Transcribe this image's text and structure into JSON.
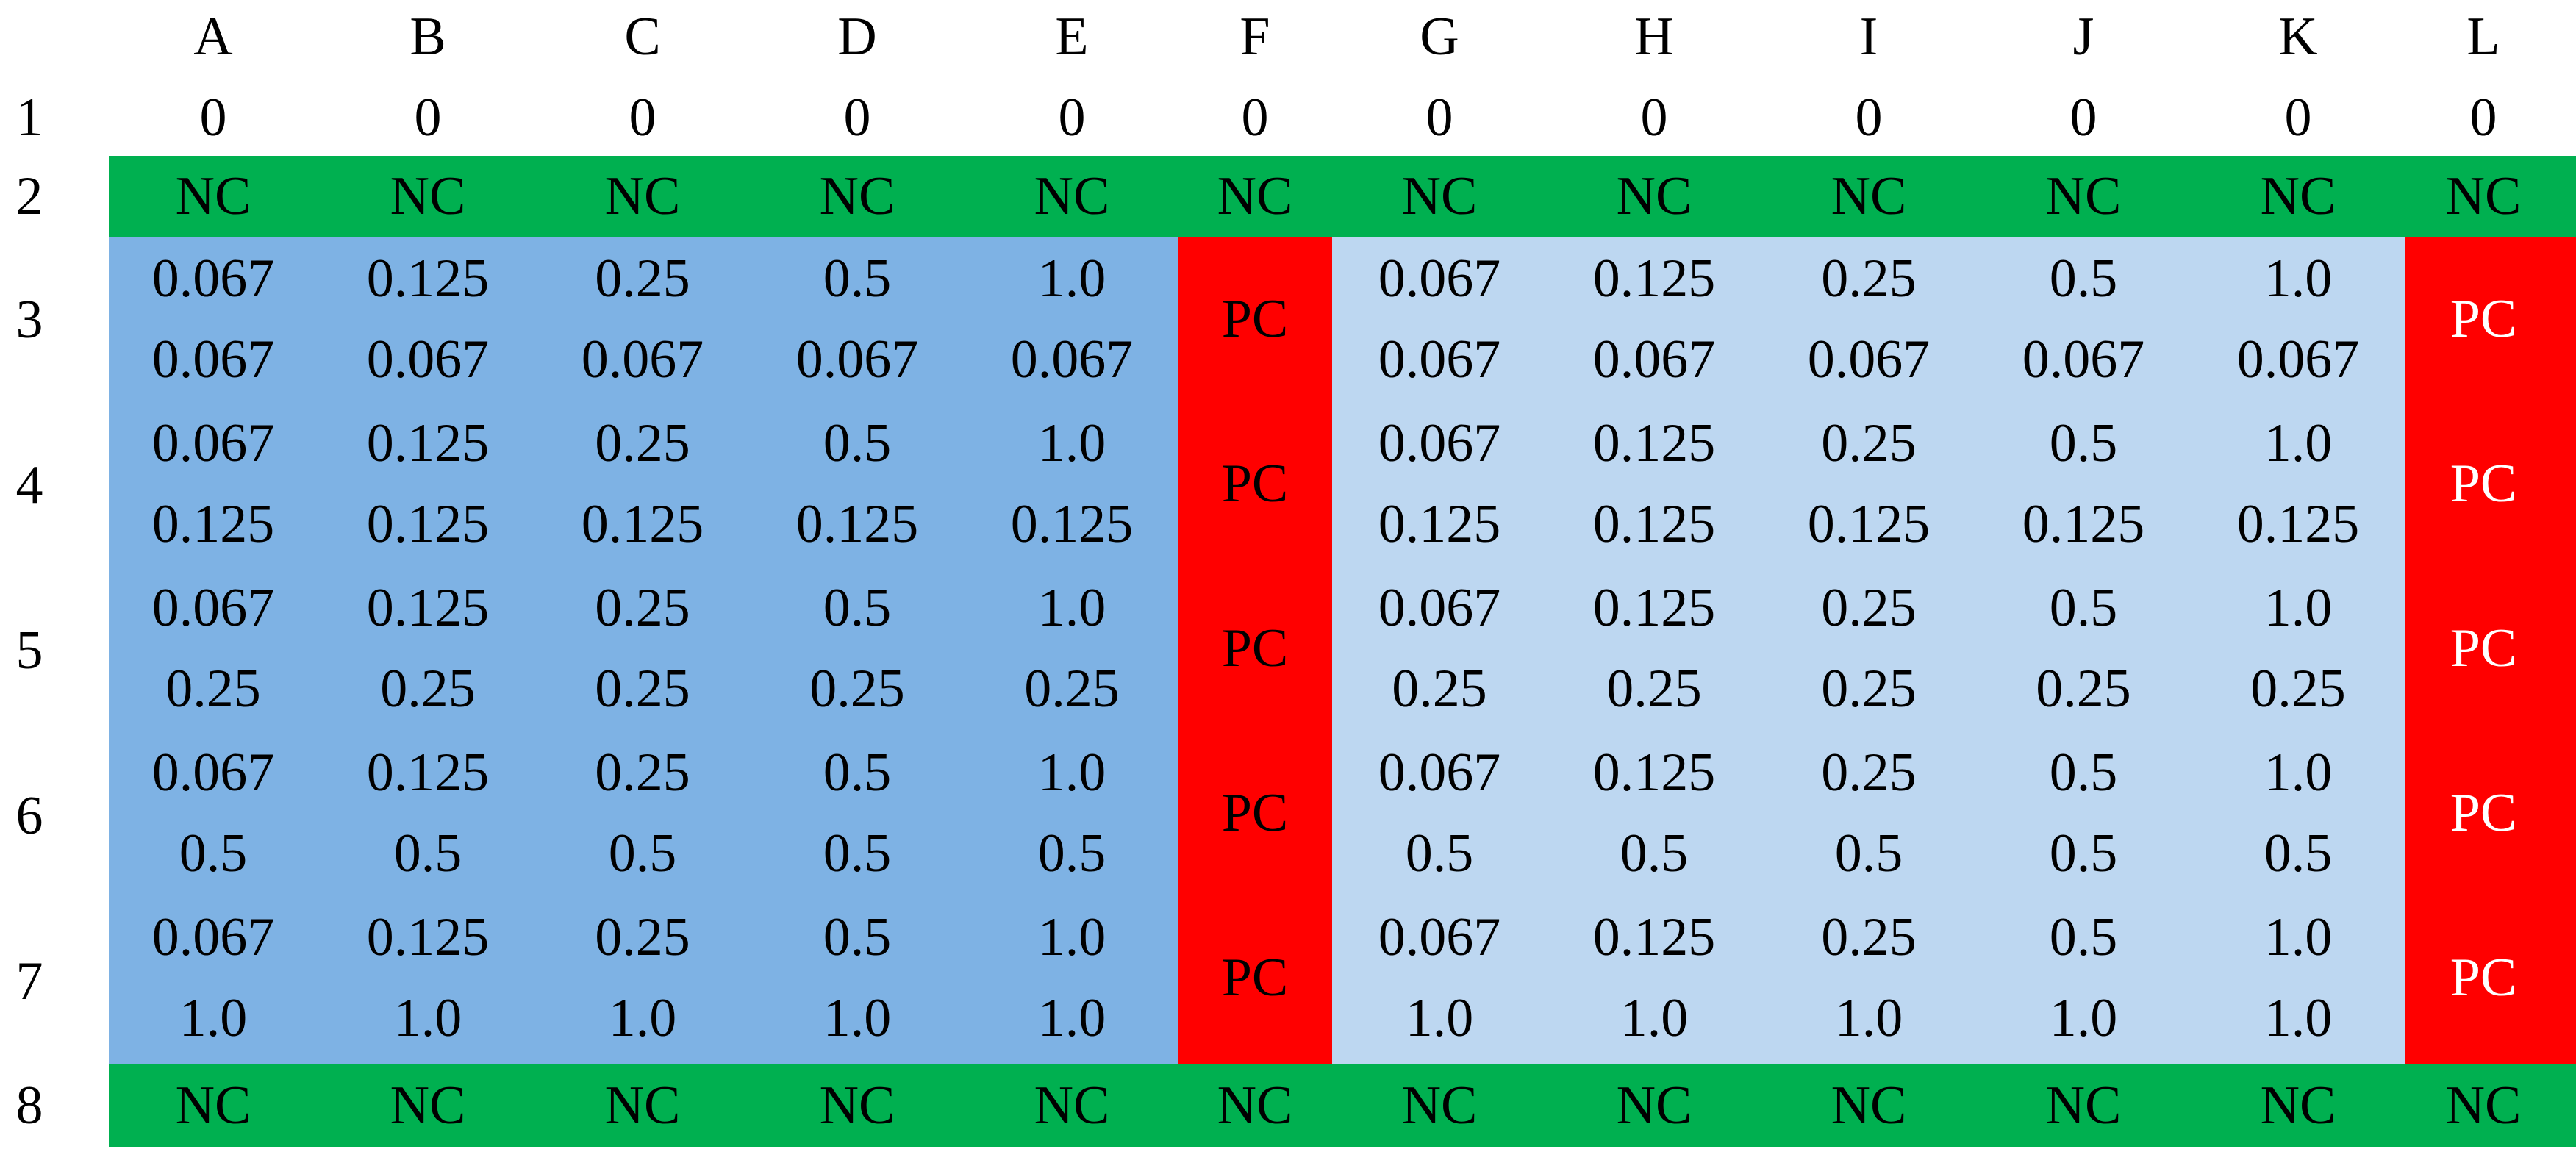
{
  "plate": {
    "columns": [
      "A",
      "B",
      "C",
      "D",
      "E",
      "F",
      "G",
      "H",
      "I",
      "J",
      "K",
      "L"
    ],
    "rows": [
      "1",
      "2",
      "3",
      "4",
      "5",
      "6",
      "7",
      "8"
    ],
    "row1_values": [
      "0",
      "0",
      "0",
      "0",
      "0",
      "0",
      "0",
      "0",
      "0",
      "0",
      "0",
      "0"
    ],
    "negative_control": "NC",
    "positive_control": "PC",
    "x_levels": [
      "0.067",
      "0.125",
      "0.25",
      "0.5",
      "1.0"
    ],
    "y_levels": [
      "0.067",
      "0.125",
      "0.25",
      "0.5",
      "1.0"
    ],
    "colors": {
      "nc_band": "#00b050",
      "block_left": "#7eb2e4",
      "block_right": "#bdd7f1",
      "pc_column": "#ff0000",
      "pc_text_left": "#000000",
      "pc_text_right": "#ffffff"
    }
  }
}
